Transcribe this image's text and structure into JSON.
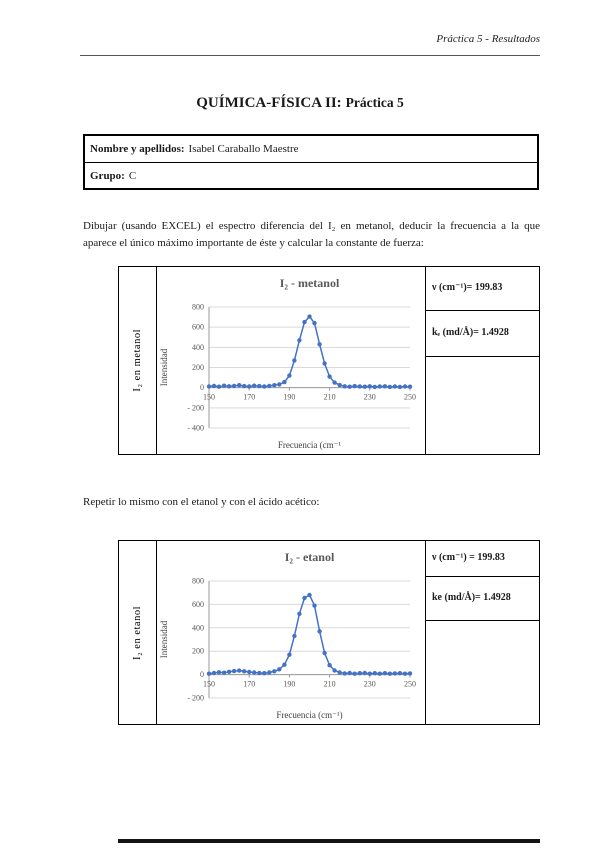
{
  "header": {
    "title": "Práctica 5 - Resultados"
  },
  "title": {
    "main": "QUÍMICA-FÍSICA II:",
    "sub": "Práctica 5"
  },
  "info_table": {
    "rows": [
      {
        "label": "Nombre y apellidos:",
        "value": "Isabel Caraballo Maestre"
      },
      {
        "label": "Grupo:",
        "value": "C"
      }
    ]
  },
  "paragraphs": {
    "p1": "Dibujar (usando EXCEL) el espectro diferencia del I₂ en metanol, deducir la frecuencia a la que aparece el único máximo importante de éste y calcular la constante de fuerza:",
    "p2": "Repetir lo mismo con el etanol y con el ácido acético:"
  },
  "figures": [
    {
      "side_label": "I₂ en metanol",
      "results": [
        {
          "text": "ν (cm⁻¹)= 199.83"
        },
        {
          "text": "kₑ (md/Å)= 1.4928"
        }
      ]
    },
    {
      "side_label": "I₂ en etanol",
      "results": [
        {
          "text": "ν (cm⁻¹) = 199.83"
        },
        {
          "text": "ke (md/Å)= 1.4928"
        }
      ]
    }
  ],
  "colors": {
    "series": "#4472c4",
    "chart_text": "#595959",
    "grid": "#d9d9d9",
    "axis": "#9a9a9a",
    "label_text": "#3f3f3f"
  },
  "chart_data": [
    {
      "type": "line",
      "title": "I₂ - metanol",
      "xlabel": "Frecuencia (cm⁻¹",
      "ylabel": "Intensidad",
      "xlim": [
        150,
        250
      ],
      "ylim": [
        -400,
        800
      ],
      "xticks": [
        150,
        170,
        190,
        210,
        230,
        250
      ],
      "yticks": [
        800,
        600,
        400,
        200,
        0,
        -200,
        -400
      ],
      "ytick_labels": [
        "800",
        "600",
        "400",
        "200",
        "0",
        "- 200",
        "- 400"
      ],
      "grid": true,
      "legend": false,
      "x": [
        150,
        152.5,
        155,
        157.5,
        160,
        162.5,
        165,
        167.5,
        170,
        172.5,
        175,
        177.5,
        180,
        182.5,
        185,
        187.5,
        190,
        192.5,
        195,
        197.5,
        200,
        202.5,
        205,
        207.5,
        210,
        212.5,
        215,
        217.5,
        220,
        222.5,
        225,
        227.5,
        230,
        232.5,
        235,
        237.5,
        240,
        242.5,
        245,
        247.5,
        250
      ],
      "y": [
        12,
        18,
        10,
        20,
        14,
        18,
        24,
        16,
        12,
        20,
        16,
        12,
        18,
        24,
        32,
        55,
        120,
        270,
        470,
        650,
        705,
        640,
        430,
        240,
        110,
        50,
        25,
        14,
        10,
        16,
        12,
        10,
        14,
        8,
        12,
        14,
        8,
        12,
        8,
        12,
        10
      ]
    },
    {
      "type": "line",
      "title": "I₂ - etanol",
      "xlabel": "Frecuencia (cm⁻¹)",
      "ylabel": "Intensidad",
      "xlim": [
        150,
        250
      ],
      "ylim": [
        -200,
        800
      ],
      "xticks": [
        150,
        170,
        190,
        210,
        230,
        250
      ],
      "yticks": [
        800,
        600,
        400,
        200,
        0,
        -200
      ],
      "ytick_labels": [
        "800",
        "600",
        "400",
        "200",
        "0",
        "- 200"
      ],
      "grid": true,
      "legend": false,
      "x": [
        150,
        152.5,
        155,
        157.5,
        160,
        162.5,
        165,
        167.5,
        170,
        172.5,
        175,
        177.5,
        180,
        182.5,
        185,
        187.5,
        190,
        192.5,
        195,
        197.5,
        200,
        202.5,
        205,
        207.5,
        210,
        212.5,
        215,
        217.5,
        220,
        222.5,
        225,
        227.5,
        230,
        232.5,
        235,
        237.5,
        240,
        242.5,
        245,
        247.5,
        250
      ],
      "y": [
        8,
        14,
        20,
        16,
        24,
        30,
        34,
        28,
        22,
        18,
        14,
        12,
        18,
        28,
        45,
        85,
        170,
        330,
        520,
        655,
        680,
        590,
        370,
        185,
        80,
        35,
        18,
        10,
        14,
        8,
        12,
        14,
        8,
        12,
        8,
        12,
        8,
        10,
        12,
        8,
        10
      ]
    }
  ]
}
